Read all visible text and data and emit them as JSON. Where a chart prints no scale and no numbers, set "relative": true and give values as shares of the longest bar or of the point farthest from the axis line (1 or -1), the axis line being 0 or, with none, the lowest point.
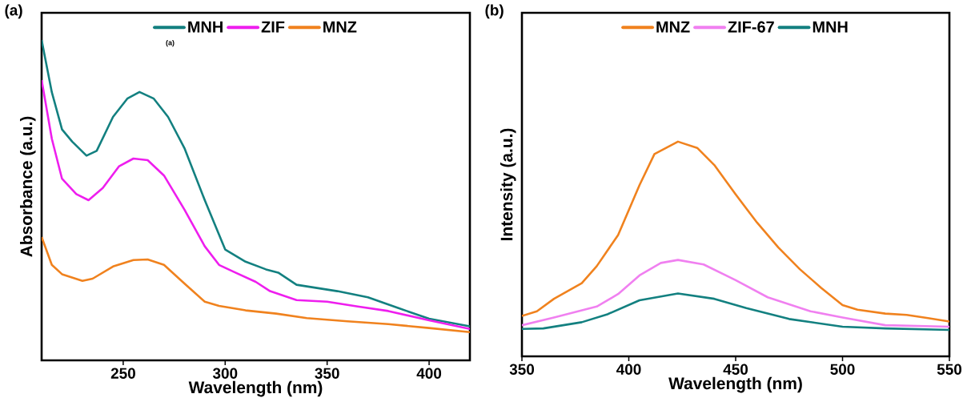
{
  "chart_data": [
    {
      "type": "line",
      "relative": true,
      "xlabel": "Wavelength (nm)",
      "ylabel": "Absorbance (a.u.)",
      "xlim": [
        210,
        420
      ],
      "xticks": [
        250,
        300,
        350,
        400
      ],
      "legend": "top",
      "annotations": [
        "(a)",
        "(a)"
      ],
      "series": [
        {
          "name": "MNH",
          "color": "#138080",
          "x": [
            210,
            215,
            220,
            225,
            232,
            237,
            245,
            252,
            258,
            265,
            272,
            280,
            290,
            300,
            310,
            320,
            326,
            335,
            345,
            355,
            370,
            385,
            400,
            420
          ],
          "values": [
            1.0,
            0.837,
            0.721,
            0.683,
            0.639,
            0.654,
            0.76,
            0.817,
            0.838,
            0.817,
            0.76,
            0.663,
            0.5,
            0.346,
            0.308,
            0.284,
            0.274,
            0.236,
            0.226,
            0.216,
            0.197,
            0.163,
            0.13,
            0.106
          ]
        },
        {
          "name": "ZIF",
          "color": "#ee1eee",
          "x": [
            210,
            215,
            220,
            227,
            233,
            240,
            248,
            255,
            262,
            270,
            280,
            290,
            297,
            305,
            315,
            322,
            335,
            350,
            365,
            380,
            400,
            420
          ],
          "values": [
            0.875,
            0.692,
            0.567,
            0.519,
            0.5,
            0.538,
            0.606,
            0.63,
            0.625,
            0.577,
            0.471,
            0.356,
            0.298,
            0.274,
            0.245,
            0.216,
            0.188,
            0.183,
            0.168,
            0.154,
            0.125,
            0.098
          ]
        },
        {
          "name": "MNZ",
          "color": "#f0821e",
          "x": [
            210,
            215,
            220,
            230,
            235,
            245,
            255,
            262,
            270,
            280,
            290,
            297,
            310,
            325,
            340,
            360,
            380,
            400,
            420
          ],
          "values": [
            0.385,
            0.298,
            0.269,
            0.248,
            0.255,
            0.293,
            0.313,
            0.315,
            0.298,
            0.24,
            0.183,
            0.17,
            0.156,
            0.146,
            0.132,
            0.122,
            0.113,
            0.101,
            0.088
          ]
        }
      ]
    },
    {
      "type": "line",
      "relative": true,
      "xlabel": "Wavelength (nm)",
      "ylabel": "Intensity (a.u.)",
      "xlim": [
        350,
        550
      ],
      "xticks": [
        350,
        400,
        450,
        500,
        550
      ],
      "legend": "top",
      "annotations": [
        "(b)"
      ],
      "series": [
        {
          "name": "MNZ",
          "color": "#f0821e",
          "x": [
            350,
            357,
            365,
            378,
            385,
            395,
            405,
            412,
            423,
            432,
            440,
            450,
            460,
            470,
            480,
            490,
            500,
            507,
            520,
            530,
            540,
            550
          ],
          "values": [
            0.188,
            0.21,
            0.268,
            0.341,
            0.42,
            0.565,
            0.797,
            0.942,
            1.0,
            0.971,
            0.891,
            0.754,
            0.623,
            0.507,
            0.406,
            0.319,
            0.239,
            0.217,
            0.199,
            0.193,
            0.178,
            0.162
          ]
        },
        {
          "name": "ZIF-67",
          "color": "#f080f0",
          "x": [
            350,
            365,
            385,
            395,
            405,
            415,
            423,
            435,
            450,
            465,
            485,
            500,
            520,
            550
          ],
          "values": [
            0.145,
            0.181,
            0.232,
            0.29,
            0.377,
            0.435,
            0.449,
            0.428,
            0.355,
            0.275,
            0.21,
            0.181,
            0.145,
            0.138
          ]
        },
        {
          "name": "MNH",
          "color": "#138080",
          "x": [
            350,
            360,
            378,
            390,
            405,
            423,
            440,
            455,
            475,
            500,
            520,
            550
          ],
          "values": [
            0.128,
            0.13,
            0.159,
            0.196,
            0.261,
            0.293,
            0.268,
            0.225,
            0.174,
            0.138,
            0.13,
            0.123
          ]
        }
      ]
    }
  ]
}
